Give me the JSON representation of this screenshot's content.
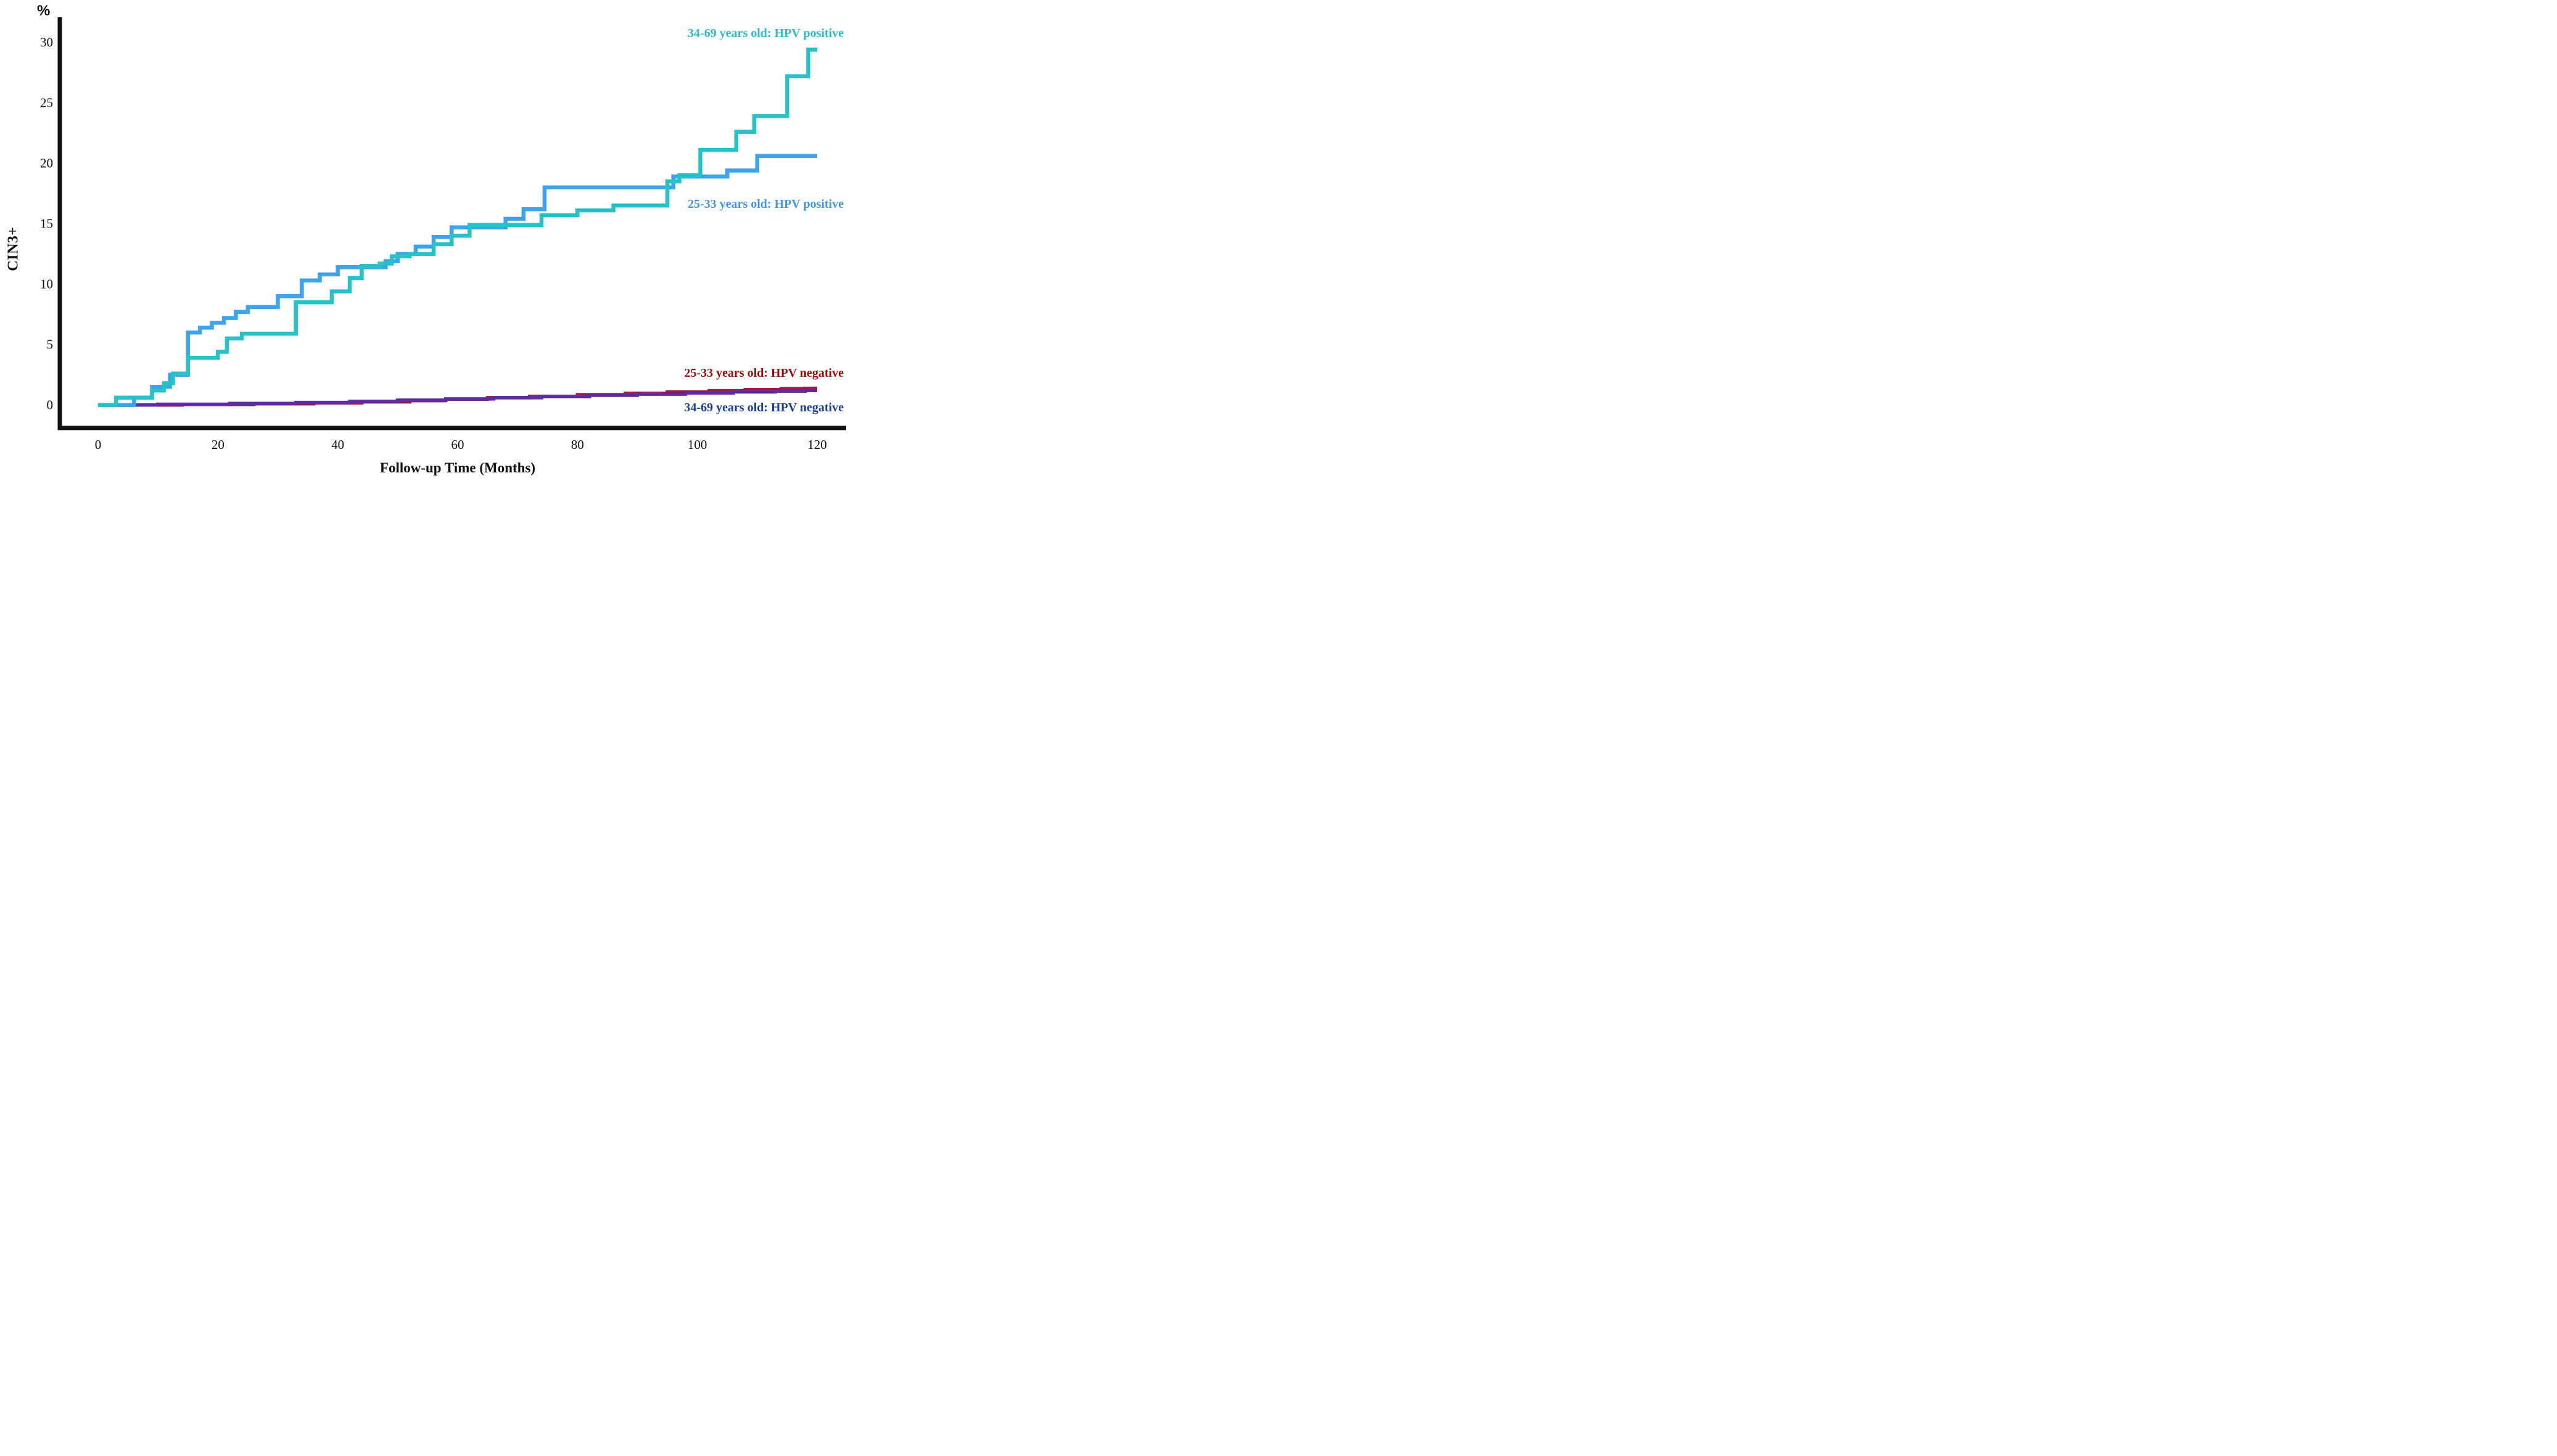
{
  "chart_data": {
    "type": "line",
    "subtype": "step-cumulative-incidence",
    "title": "",
    "xlabel": "Follow-up Time (Months)",
    "ylabel": "CIN3+",
    "y_unit_label": "%",
    "xlim": [
      0,
      120
    ],
    "ylim": [
      0,
      30
    ],
    "x_ticks": [
      0,
      20,
      40,
      60,
      80,
      100,
      120
    ],
    "y_ticks": [
      0,
      5,
      10,
      15,
      20,
      25,
      30
    ],
    "grid": false,
    "legend_position": "inline-right",
    "axis_color": "#111111",
    "series": [
      {
        "name": "34-69 years old: HPV positive",
        "color": "#25c3c8",
        "label_color": "#29bec9",
        "final_value_pct": 29.4,
        "points": [
          [
            0,
            0
          ],
          [
            3,
            0.6
          ],
          [
            9,
            1.2
          ],
          [
            11,
            1.8
          ],
          [
            12.5,
            2.6
          ],
          [
            15,
            3.9
          ],
          [
            20,
            4.4
          ],
          [
            21.5,
            5.5
          ],
          [
            24,
            5.9
          ],
          [
            33,
            8.5
          ],
          [
            39,
            9.4
          ],
          [
            42,
            10.5
          ],
          [
            44,
            11.5
          ],
          [
            47,
            11.7
          ],
          [
            49,
            12.3
          ],
          [
            52,
            12.5
          ],
          [
            56,
            13.3
          ],
          [
            59,
            14.0
          ],
          [
            62,
            14.9
          ],
          [
            74,
            15.7
          ],
          [
            80,
            16.1
          ],
          [
            86,
            16.5
          ],
          [
            95,
            18.5
          ],
          [
            97,
            19.0
          ],
          [
            100.5,
            21.1
          ],
          [
            106.5,
            22.6
          ],
          [
            109.5,
            23.9
          ],
          [
            115,
            27.2
          ],
          [
            118.5,
            29.4
          ]
        ]
      },
      {
        "name": "25-33 years old: HPV positive",
        "color": "#3ba4ee",
        "label_color": "#4596e0",
        "final_value_pct": 20.6,
        "points": [
          [
            0,
            0
          ],
          [
            6,
            0.6
          ],
          [
            9,
            1.5
          ],
          [
            12,
            2.5
          ],
          [
            15,
            6.0
          ],
          [
            17,
            6.4
          ],
          [
            19,
            6.8
          ],
          [
            21,
            7.2
          ],
          [
            23,
            7.7
          ],
          [
            25,
            8.1
          ],
          [
            30,
            9.0
          ],
          [
            34,
            10.3
          ],
          [
            37,
            10.8
          ],
          [
            40,
            11.4
          ],
          [
            48,
            11.9
          ],
          [
            50,
            12.5
          ],
          [
            53,
            13.1
          ],
          [
            56,
            13.9
          ],
          [
            59,
            14.7
          ],
          [
            68,
            15.4
          ],
          [
            71,
            16.2
          ],
          [
            74.5,
            18.0
          ],
          [
            96,
            18.9
          ],
          [
            105,
            19.4
          ],
          [
            110,
            20.6
          ]
        ]
      },
      {
        "name": "25-33 years old: HPV negative",
        "color": "#a81838",
        "label_color": "#9e0d0d",
        "final_value_pct": 1.38,
        "points": [
          [
            0,
            0
          ],
          [
            14,
            0.04
          ],
          [
            26,
            0.1
          ],
          [
            36,
            0.17
          ],
          [
            44,
            0.26
          ],
          [
            52,
            0.36
          ],
          [
            58,
            0.48
          ],
          [
            65,
            0.6
          ],
          [
            72,
            0.72
          ],
          [
            80,
            0.85
          ],
          [
            88,
            0.97
          ],
          [
            95,
            1.08
          ],
          [
            102,
            1.18
          ],
          [
            108,
            1.27
          ],
          [
            114,
            1.35
          ],
          [
            118,
            1.38
          ]
        ]
      },
      {
        "name": "34-69 years old: HPV negative",
        "color": "#5b2ca4",
        "label_color": "#1b3f9b",
        "final_value_pct": 1.2,
        "points": [
          [
            0,
            0
          ],
          [
            10,
            0.06
          ],
          [
            22,
            0.13
          ],
          [
            33,
            0.21
          ],
          [
            42,
            0.3
          ],
          [
            50,
            0.4
          ],
          [
            58,
            0.5
          ],
          [
            66,
            0.6
          ],
          [
            74,
            0.7
          ],
          [
            82,
            0.8
          ],
          [
            90,
            0.9
          ],
          [
            98,
            1.0
          ],
          [
            106,
            1.08
          ],
          [
            113,
            1.15
          ],
          [
            118,
            1.2
          ]
        ]
      }
    ],
    "annotations": [
      {
        "series_index": 0,
        "text": "34-69 years old: HPV positive"
      },
      {
        "series_index": 1,
        "text": "25-33 years old: HPV positive"
      },
      {
        "series_index": 2,
        "text": "25-33 years old: HPV negative"
      },
      {
        "series_index": 3,
        "text": "34-69 years old: HPV negative"
      }
    ]
  }
}
